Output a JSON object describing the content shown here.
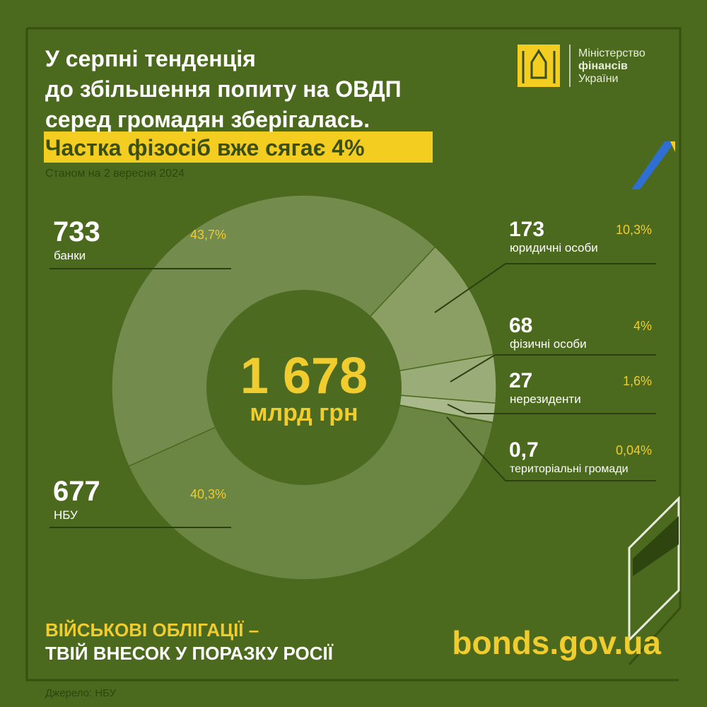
{
  "chart_data": {
    "type": "donut",
    "title": [
      "У серпні тенденція",
      "до збільшення попиту на ОВДП",
      "серед громадян зберігалась."
    ],
    "headline": "Частка фізосіб вже сягає 4%",
    "subtitle": "Станом на 2 вересня 2024",
    "categories": [
      "юридичні особи",
      "фізичні особи",
      "нерезиденти",
      "територіальні громади",
      "НБУ",
      "банки"
    ],
    "values": [
      173,
      68,
      27,
      0.7,
      677,
      733
    ],
    "value_labels": [
      "173",
      "68",
      "27",
      "0,7",
      "677",
      "733"
    ],
    "shares": [
      10.3,
      4,
      1.6,
      0.04,
      40.3,
      43.7
    ],
    "share_labels": [
      "10,3%",
      "4%",
      "1,6%",
      "0,04%",
      "40,3%",
      "43,7%"
    ],
    "colors": [
      "#8b9e63",
      "#9aac77",
      "#a9b98b",
      "#e9eddc",
      "#6b8543",
      "#738b4d"
    ],
    "total": 1678,
    "total_label": "1 678",
    "unit": "млрд грн",
    "logo": [
      "Міністерство",
      "фінансів",
      "України"
    ],
    "footer": [
      "ВІЙСЬКОВІ ОБЛІГАЦІЇ –",
      "ТВІЙ ВНЕСОК У ПОРАЗКУ РОСІЇ"
    ],
    "website": "bonds.gov.ua",
    "source": "Джерело: НБУ"
  }
}
